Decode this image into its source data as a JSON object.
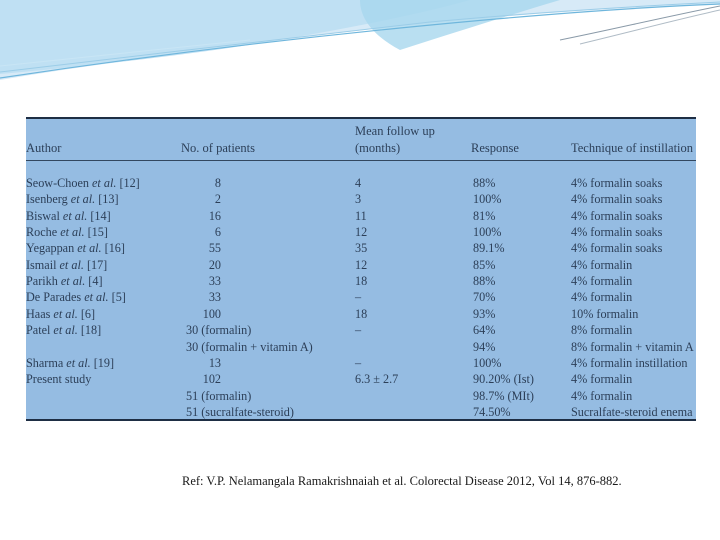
{
  "table": {
    "headers": {
      "author": "Author",
      "patients": "No. of patients",
      "followup_line1": "Mean follow up",
      "followup_line2": "(months)",
      "response": "Response",
      "technique": "Technique of instillation"
    },
    "rows": [
      {
        "author": "Seow-Choen",
        "etal": " et al.",
        "ref": " [12]",
        "patients": "8",
        "followup": "4",
        "response": "88%",
        "technique": "4% formalin soaks"
      },
      {
        "author": "Isenberg",
        "etal": " et al.",
        "ref": " [13]",
        "patients": "2",
        "followup": "3",
        "response": "100%",
        "technique": "4% formalin soaks"
      },
      {
        "author": "Biswal",
        "etal": " et al.",
        "ref": " [14]",
        "patients": "16",
        "followup": "11",
        "response": "81%",
        "technique": "4% formalin soaks"
      },
      {
        "author": "Roche",
        "etal": " et al.",
        "ref": " [15]",
        "patients": "6",
        "followup": "12",
        "response": "100%",
        "technique": "4% formalin soaks"
      },
      {
        "author": "Yegappan",
        "etal": " et al.",
        "ref": " [16]",
        "patients": "55",
        "followup": "35",
        "response": "89.1%",
        "technique": "4% formalin soaks"
      },
      {
        "author": "Ismail",
        "etal": " et al.",
        "ref": " [17]",
        "patients": "20",
        "followup": "12",
        "response": "85%",
        "technique": "4% formalin"
      },
      {
        "author": "Parikh",
        "etal": " et al.",
        "ref": " [4]",
        "patients": "33",
        "followup": "18",
        "response": "88%",
        "technique": "4% formalin"
      },
      {
        "author": "De Parades",
        "etal": " et al.",
        "ref": " [5]",
        "patients": "33",
        "followup": "–",
        "response": "70%",
        "technique": "4% formalin"
      },
      {
        "author": "Haas",
        "etal": " et al.",
        "ref": " [6]",
        "patients": "100",
        "followup": "18",
        "response": "93%",
        "technique": "10% formalin"
      },
      {
        "author": "Patel",
        "etal": " et al.",
        "ref": " [18]",
        "patients": "30 (formalin)",
        "followup": "–",
        "response": "64%",
        "technique": "8% formalin"
      },
      {
        "author": "",
        "etal": "",
        "ref": "",
        "patients": "30 (formalin + vitamin A)",
        "followup": "",
        "response": "94%",
        "technique": "8% formalin + vitamin A"
      },
      {
        "author": "Sharma",
        "etal": " et al.",
        "ref": " [19]",
        "patients": "13",
        "followup": "–",
        "response": "100%",
        "technique": "4% formalin instillation"
      },
      {
        "author": "Present study",
        "etal": "",
        "ref": "",
        "patients": "102",
        "followup": "6.3 ± 2.7",
        "response": "90.20% (Ist)",
        "technique": "4% formalin"
      },
      {
        "author": "",
        "etal": "",
        "ref": "",
        "patients": "51 (formalin)",
        "followup": "",
        "response": "98.7% (MIt)",
        "technique": "4% formalin"
      },
      {
        "author": "",
        "etal": "",
        "ref": "",
        "patients": "51 (sucralfate-steroid)",
        "followup": "",
        "response": "74.50%",
        "technique": "Sucralfate-steroid enema"
      }
    ]
  },
  "reference": "Ref: V.P. Nelamangala Ramakrishnaiah et al. Colorectal Disease 2012, Vol 14, 876-882."
}
